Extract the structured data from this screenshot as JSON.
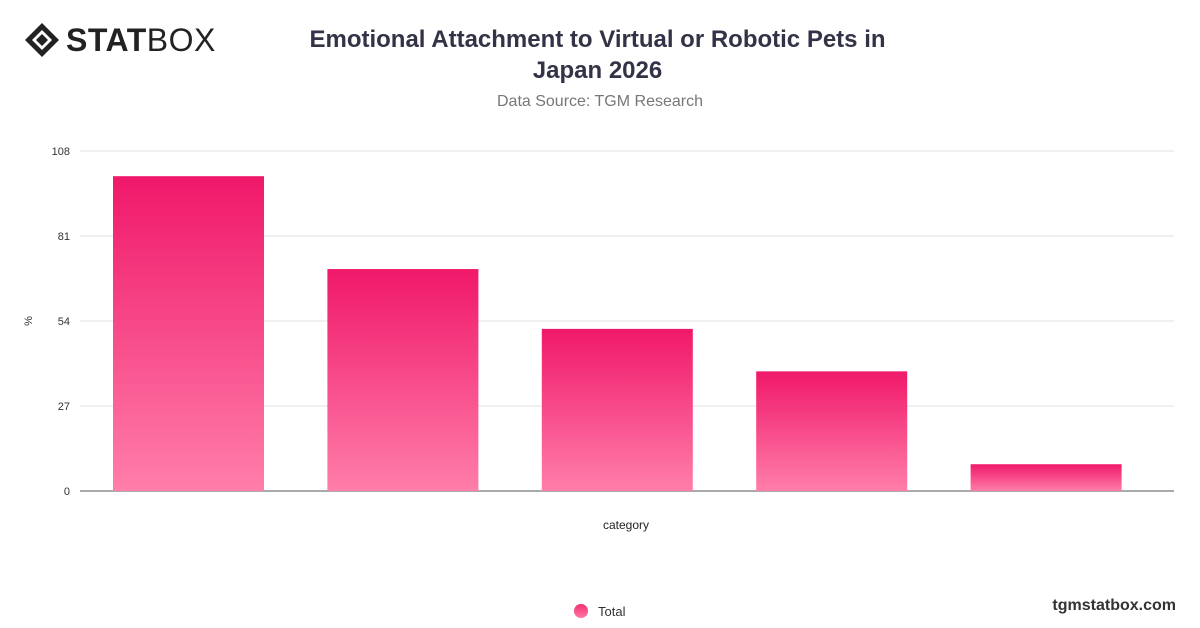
{
  "brand": {
    "logo_bold": "STAT",
    "logo_light": "BOX",
    "logo_icon": "diamond-logo-icon"
  },
  "header": {
    "title": "Emotional Attachment to Virtual or Robotic Pets in Japan 2026",
    "subtitle": "Data Source: TGM Research"
  },
  "footer": {
    "site": "tgmstatbox.com"
  },
  "colors": {
    "bar_top": "#f0186a",
    "bar_bottom": "#ff7eaa",
    "grid": "#e2e2e2",
    "axis": "#555555"
  },
  "chart_data": {
    "type": "bar",
    "title": "Emotional Attachment to Virtual or Robotic Pets in Japan 2026",
    "subtitle": "Data Source: TGM Research",
    "xlabel": "category",
    "ylabel": "%",
    "ylim": [
      0,
      108
    ],
    "yticks": [
      0,
      27,
      54,
      81,
      108
    ],
    "categories": [
      "",
      "",
      "",
      "",
      ""
    ],
    "series": [
      {
        "name": "Total",
        "values": [
          100,
          70.5,
          51.5,
          38,
          8.5
        ]
      }
    ],
    "grid": true,
    "legend": "bottom-center"
  }
}
